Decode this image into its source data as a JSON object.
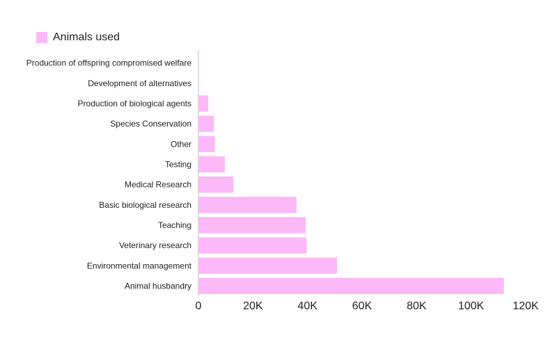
{
  "chart_data": {
    "type": "bar",
    "orientation": "horizontal",
    "categories": [
      "Production of offspring compromised welfare",
      "Development of alternatives",
      "Production of biological agents",
      "Species Conservation",
      "Other",
      "Testing",
      "Medical Research",
      "Basic biological research",
      "Teaching",
      "Veterinary research",
      "Environmental management",
      "Animal husbandry"
    ],
    "series": [
      {
        "name": "Animals used",
        "values": [
          100,
          200,
          3600,
          5700,
          6000,
          9700,
          12800,
          36000,
          39300,
          39700,
          50800,
          112000
        ]
      }
    ],
    "xlim": [
      0,
      120000
    ],
    "xticks": [
      0,
      20000,
      40000,
      60000,
      80000,
      100000,
      120000
    ],
    "xtick_labels": [
      "0",
      "20K",
      "40K",
      "60K",
      "80K",
      "100K",
      "120K"
    ],
    "title": "",
    "xlabel": "",
    "ylabel": "",
    "grid": false,
    "legend_position": "top-left",
    "bar_color": "#fdb8f7"
  }
}
